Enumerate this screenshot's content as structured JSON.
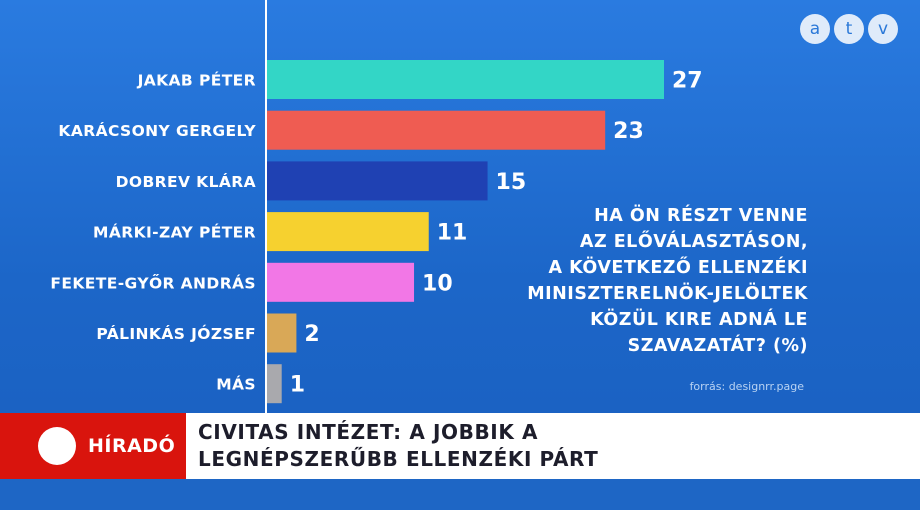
{
  "logo": {
    "letters": [
      "a",
      "t",
      "v"
    ]
  },
  "question": "HA ÖN RÉSZT VENNE\nAZ ELŐVÁLASZTÁSON,\nA KÖVETKEZŐ ELLENZÉKI\nMINISZTERELNÖK-JELÖLTEK\nKÖZÜL KIRE ADNÁ LE\nSZAVAZATÁT? (%)",
  "source": "forrás: designrr.page",
  "ticker": {
    "brand": "HÍRADÓ",
    "headline": "CIVITAS INTÉZET: A JOBBIK A\nLEGNÉPSZERŰBB ELLENZÉKI PÁRT"
  },
  "colors": {
    "background": "#1f6fd0",
    "brand_red": "#d9140d",
    "axis": "#ffffff"
  },
  "chart_data": {
    "type": "bar",
    "orientation": "horizontal",
    "categories": [
      "JAKAB PÉTER",
      "KARÁCSONY GERGELY",
      "DOBREV KLÁRA",
      "MÁRKI-ZAY PÉTER",
      "FEKETE-GYŐR ANDRÁS",
      "PÁLINKÁS JÓZSEF",
      "MÁS"
    ],
    "values": [
      27,
      23,
      15,
      11,
      10,
      2,
      1
    ],
    "colors": [
      "#33d6c6",
      "#ef5c52",
      "#1f41b3",
      "#f6d12f",
      "#f277e6",
      "#d9a857",
      "#a9a9ad"
    ],
    "data_labels": [
      "27",
      "23",
      "15",
      "11",
      "10",
      "2",
      "1"
    ],
    "title": "HA ÖN RÉSZT VENNE AZ ELŐVÁLASZTÁSON, A KÖVETKEZŐ ELLENZÉKI MINISZTERELNÖK-JELÖLTEK KÖZÜL KIRE ADNÁ LE SZAVAZATÁT? (%)",
    "xlim": [
      0,
      27
    ],
    "grid": false,
    "legend": "none"
  }
}
